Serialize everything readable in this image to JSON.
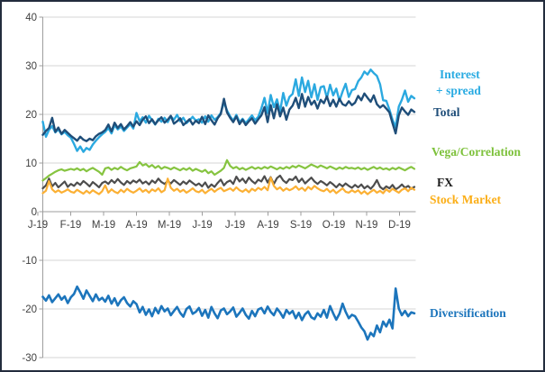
{
  "window": {
    "background": "#ffffff",
    "border_color": "#232c3d"
  },
  "labels": {
    "interest_spread_line1": "Interest",
    "interest_spread_line2": "+ spread",
    "total": "Total",
    "vega_correlation": "Vega/Correlation",
    "fx": "FX",
    "stock_market": "Stock Market",
    "diversification": "Diversification"
  },
  "label_colors": {
    "interest_spread": "#29abe2",
    "total": "#1f4e79",
    "vega_correlation": "#7dc13b",
    "fx": "#1a1a1a",
    "stock_market": "#fbae17",
    "diversification": "#1c75bc"
  },
  "chart_data": {
    "type": "line",
    "title": "",
    "xlabel": "",
    "ylabel": "",
    "ylim": [
      -30,
      40
    ],
    "grid": true,
    "grid_color": "#d6d6d6",
    "axis_color": "#9e9e9e",
    "tick_text_color": "#3f3f3f",
    "legend_position": "right-outside",
    "x_axis": {
      "tick_labels": [
        "J-19",
        "F-19",
        "M-19",
        "A-19",
        "M-19",
        "J-19",
        "J-19",
        "A-19",
        "S-19",
        "O-19",
        "N-19",
        "D-19"
      ]
    },
    "y_axis": {
      "min": -30,
      "max": 40,
      "step": 10,
      "tick_labels": [
        "40",
        "30",
        "20",
        "10",
        "0",
        "-10",
        "-20",
        "-30"
      ]
    },
    "series": [
      {
        "name": "Interest + spread",
        "color": "#2ba9e0",
        "values": [
          18.5,
          15.4,
          16.8,
          17.6,
          16.3,
          16.9,
          15.9,
          16.4,
          15.7,
          15.2,
          13.9,
          12.5,
          13.4,
          12.3,
          13.1,
          12.7,
          13.8,
          14.6,
          15.3,
          15.9,
          16.4,
          17.2,
          16.1,
          17.8,
          16.9,
          17.5,
          16.6,
          17.3,
          18.0,
          17.1,
          20.3,
          18.6,
          19.4,
          18.3,
          19.7,
          18.8,
          17.9,
          19.1,
          18.5,
          19.3,
          18.4,
          19.6,
          18.9,
          19.9,
          18.6,
          19.3,
          18.2,
          18.8,
          19.5,
          18.7,
          19.0,
          18.3,
          19.6,
          18.5,
          19.8,
          18.9,
          19.4,
          20.3,
          22.5,
          20.8,
          19.6,
          18.7,
          19.9,
          18.4,
          19.1,
          18.2,
          19.0,
          19.8,
          18.8,
          19.5,
          21.2,
          23.4,
          20.3,
          24.0,
          21.5,
          23.1,
          20.6,
          24.4,
          21.8,
          23.6,
          24.2,
          27.2,
          23.8,
          27.6,
          24.6,
          26.9,
          23.5,
          26.2,
          23.0,
          25.6,
          25.8,
          23.4,
          26.1,
          23.9,
          25.3,
          22.8,
          24.7,
          26.3,
          23.6,
          25.0,
          25.2,
          26.8,
          27.6,
          28.8,
          28.2,
          29.2,
          28.5,
          27.9,
          26.2,
          22.9,
          22.8,
          21.0,
          18.9,
          17.4,
          21.6,
          23.0,
          24.9,
          22.6,
          23.8,
          23.3
        ]
      },
      {
        "name": "Total",
        "color": "#1f4e79",
        "values": [
          15.8,
          16.6,
          17.2,
          19.3,
          16.4,
          17.3,
          16.0,
          16.8,
          16.2,
          15.6,
          15.1,
          14.6,
          15.4,
          14.8,
          14.5,
          15.0,
          14.7,
          15.5,
          16.0,
          16.3,
          16.8,
          17.9,
          16.5,
          18.3,
          17.2,
          18.0,
          16.9,
          17.6,
          18.4,
          17.5,
          18.6,
          17.8,
          18.9,
          19.6,
          18.2,
          19.0,
          18.0,
          18.8,
          19.4,
          18.3,
          18.9,
          19.7,
          18.1,
          18.6,
          19.2,
          17.8,
          18.4,
          19.0,
          17.9,
          18.7,
          18.2,
          19.5,
          18.0,
          19.8,
          18.8,
          17.9,
          19.2,
          20.1,
          23.2,
          20.4,
          19.3,
          18.4,
          19.6,
          18.0,
          18.9,
          17.8,
          18.6,
          19.2,
          18.1,
          19.0,
          19.8,
          21.5,
          18.4,
          21.9,
          19.2,
          22.1,
          19.6,
          21.4,
          18.9,
          21.0,
          21.8,
          23.4,
          21.3,
          24.2,
          21.6,
          23.6,
          22.0,
          22.8,
          21.2,
          23.0,
          22.3,
          23.7,
          21.7,
          23.0,
          21.6,
          23.2,
          22.1,
          21.8,
          22.7,
          21.9,
          22.4,
          23.8,
          22.9,
          24.3,
          23.4,
          22.6,
          23.9,
          22.1,
          21.4,
          21.9,
          21.2,
          20.4,
          18.2,
          16.1,
          19.8,
          21.4,
          20.6,
          19.9,
          21.0,
          20.5
        ]
      },
      {
        "name": "Vega/Correlation",
        "color": "#86c440",
        "values": [
          6.4,
          6.9,
          7.4,
          7.8,
          8.2,
          8.5,
          8.7,
          8.4,
          8.6,
          8.8,
          8.6,
          8.9,
          8.5,
          8.8,
          8.3,
          8.7,
          9.0,
          8.6,
          8.2,
          7.6,
          8.9,
          9.1,
          8.6,
          9.0,
          8.7,
          9.2,
          8.8,
          8.5,
          8.9,
          9.1,
          9.3,
          10.2,
          9.5,
          9.8,
          9.2,
          9.6,
          9.0,
          9.4,
          8.8,
          9.2,
          9.0,
          8.7,
          9.1,
          8.8,
          8.5,
          8.9,
          8.6,
          9.0,
          8.4,
          8.8,
          8.5,
          8.2,
          8.6,
          7.9,
          8.3,
          7.6,
          8.0,
          8.4,
          9.0,
          10.6,
          9.4,
          8.9,
          9.2,
          8.7,
          9.0,
          8.6,
          8.9,
          9.2,
          8.8,
          9.1,
          8.8,
          9.2,
          8.9,
          9.3,
          9.0,
          8.7,
          9.1,
          8.8,
          9.2,
          8.9,
          9.4,
          9.1,
          9.5,
          9.2,
          8.9,
          9.3,
          9.7,
          9.4,
          9.1,
          9.5,
          9.2,
          8.9,
          9.3,
          9.0,
          8.7,
          9.1,
          8.8,
          9.2,
          8.9,
          9.0,
          8.8,
          9.1,
          8.7,
          9.0,
          8.6,
          8.9,
          9.2,
          8.8,
          9.1,
          8.7,
          8.9,
          8.6,
          9.0,
          8.7,
          9.1,
          8.8,
          8.5,
          8.9,
          9.2,
          8.8
        ]
      },
      {
        "name": "FX",
        "color": "#4d4d4d",
        "values": [
          4.8,
          5.4,
          6.8,
          5.2,
          5.9,
          5.0,
          5.6,
          6.2,
          5.1,
          5.7,
          5.3,
          6.0,
          5.5,
          6.3,
          5.8,
          5.2,
          6.1,
          5.6,
          5.0,
          5.9,
          6.2,
          5.7,
          6.5,
          5.9,
          6.7,
          6.0,
          5.5,
          6.3,
          5.8,
          6.4,
          6.0,
          6.6,
          5.8,
          6.2,
          5.6,
          6.4,
          5.9,
          6.8,
          6.1,
          5.7,
          6.3,
          5.8,
          6.5,
          6.0,
          5.5,
          6.2,
          5.7,
          6.4,
          5.9,
          5.4,
          5.8,
          5.2,
          6.0,
          4.9,
          5.6,
          5.1,
          5.9,
          6.6,
          5.4,
          6.1,
          6.4,
          5.7,
          7.2,
          6.2,
          6.8,
          5.9,
          7.0,
          6.3,
          5.8,
          6.6,
          6.2,
          7.3,
          6.0,
          7.1,
          5.7,
          6.9,
          7.4,
          6.4,
          5.9,
          6.7,
          6.5,
          7.2,
          6.1,
          6.8,
          5.8,
          6.4,
          7.0,
          6.2,
          5.7,
          6.3,
          5.9,
          5.4,
          6.1,
          5.6,
          5.0,
          5.7,
          5.2,
          5.8,
          5.3,
          4.9,
          5.5,
          5.0,
          5.6,
          4.8,
          5.3,
          4.7,
          5.4,
          6.5,
          5.1,
          4.6,
          5.2,
          4.8,
          5.5,
          4.6,
          5.0,
          5.6,
          4.9,
          5.3,
          4.7,
          5.1
        ]
      },
      {
        "name": "Stock Market",
        "color": "#fbb034",
        "values": [
          3.8,
          4.3,
          6.3,
          4.6,
          4.0,
          4.4,
          3.9,
          4.2,
          4.6,
          4.1,
          3.9,
          4.5,
          4.1,
          3.7,
          4.3,
          3.8,
          4.4,
          4.0,
          3.6,
          4.2,
          5.4,
          3.9,
          4.6,
          4.1,
          3.8,
          4.5,
          4.0,
          4.7,
          4.2,
          3.9,
          4.3,
          4.8,
          4.1,
          4.5,
          3.9,
          4.6,
          4.2,
          4.8,
          4.0,
          4.4,
          6.8,
          4.9,
          4.3,
          4.7,
          4.1,
          4.5,
          3.9,
          4.3,
          4.8,
          4.2,
          4.0,
          4.5,
          3.8,
          4.3,
          4.7,
          4.1,
          4.6,
          4.9,
          4.2,
          4.5,
          4.8,
          4.3,
          5.0,
          4.4,
          4.1,
          4.6,
          4.0,
          4.7,
          4.3,
          4.9,
          4.5,
          5.1,
          4.4,
          7.0,
          5.3,
          4.6,
          5.0,
          4.3,
          4.8,
          4.4,
          4.7,
          5.2,
          4.5,
          4.9,
          4.3,
          5.1,
          4.6,
          5.3,
          4.8,
          4.4,
          4.2,
          4.7,
          4.0,
          4.5,
          3.8,
          4.3,
          4.8,
          4.1,
          3.9,
          4.4,
          4.0,
          4.4,
          3.7,
          4.2,
          3.6,
          4.1,
          4.5,
          3.9,
          4.3,
          3.8,
          4.6,
          4.1,
          4.7,
          4.3,
          3.9,
          4.5,
          4.8,
          4.2,
          4.9,
          4.5
        ]
      },
      {
        "name": "Diversification",
        "color": "#1c75bc",
        "values": [
          -17.5,
          -18.3,
          -17.2,
          -18.6,
          -17.8,
          -17.0,
          -18.1,
          -17.4,
          -18.8,
          -17.6,
          -16.9,
          -15.4,
          -16.6,
          -17.9,
          -16.2,
          -17.3,
          -18.4,
          -17.0,
          -18.2,
          -17.7,
          -18.5,
          -17.3,
          -18.9,
          -17.8,
          -19.3,
          -18.2,
          -17.6,
          -18.8,
          -19.5,
          -18.4,
          -19.0,
          -20.7,
          -19.6,
          -21.2,
          -20.1,
          -21.5,
          -19.8,
          -20.9,
          -19.4,
          -20.5,
          -19.9,
          -21.3,
          -20.4,
          -19.6,
          -20.8,
          -21.6,
          -20.0,
          -19.5,
          -21.0,
          -20.6,
          -19.8,
          -21.4,
          -20.2,
          -21.8,
          -19.6,
          -20.9,
          -21.9,
          -20.3,
          -19.9,
          -21.1,
          -20.5,
          -19.7,
          -21.6,
          -20.8,
          -19.9,
          -21.2,
          -22.0,
          -20.4,
          -21.5,
          -20.1,
          -19.8,
          -20.9,
          -19.5,
          -20.6,
          -21.3,
          -19.9,
          -20.7,
          -21.8,
          -20.2,
          -21.0,
          -20.4,
          -21.9,
          -20.8,
          -22.3,
          -21.1,
          -20.5,
          -21.7,
          -22.1,
          -20.9,
          -21.6,
          -20.2,
          -21.8,
          -19.4,
          -20.9,
          -22.2,
          -21.0,
          -18.9,
          -20.6,
          -21.9,
          -21.2,
          -21.5,
          -22.6,
          -23.8,
          -24.6,
          -26.3,
          -24.9,
          -25.6,
          -23.4,
          -24.8,
          -22.6,
          -23.6,
          -22.2,
          -24.0,
          -15.8,
          -19.9,
          -21.3,
          -20.4,
          -21.5,
          -20.7,
          -20.9
        ]
      }
    ]
  }
}
